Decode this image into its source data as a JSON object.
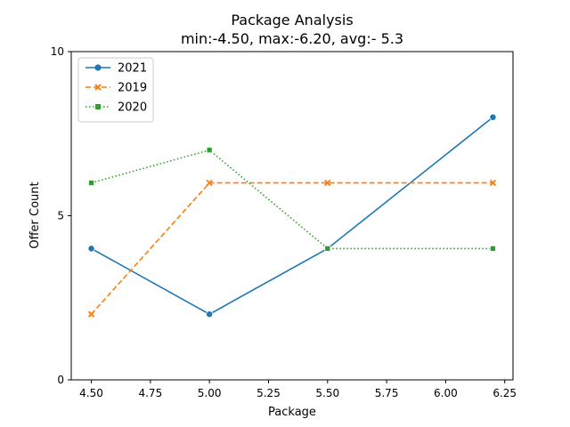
{
  "chart_data": {
    "type": "line",
    "title": "Package Analysis",
    "subtitle": "min:-4.50, max:-6.20, avg:- 5.3",
    "xlabel": "Package",
    "ylabel": "Offer Count",
    "xlim": [
      4.415,
      6.285
    ],
    "ylim": [
      0,
      10
    ],
    "x_ticks": [
      4.5,
      4.75,
      5.0,
      5.25,
      5.5,
      5.75,
      6.0,
      6.25
    ],
    "x_tick_labels": [
      "4.50",
      "4.75",
      "5.00",
      "5.25",
      "5.50",
      "5.75",
      "6.00",
      "6.25"
    ],
    "y_ticks": [
      0,
      5,
      10
    ],
    "y_tick_labels": [
      "0",
      "5",
      "10"
    ],
    "x": [
      4.5,
      5.0,
      5.5,
      6.2
    ],
    "series": [
      {
        "name": "2021",
        "values": [
          4,
          2,
          4,
          8
        ],
        "color": "#1f77b4",
        "style": "solid",
        "marker": "circle"
      },
      {
        "name": "2019",
        "values": [
          2,
          6,
          6,
          6
        ],
        "color": "#ff7f0e",
        "style": "dashed",
        "marker": "x"
      },
      {
        "name": "2020",
        "values": [
          6,
          7,
          4,
          4
        ],
        "color": "#2ca02c",
        "style": "dotted",
        "marker": "square"
      }
    ],
    "grid": false,
    "legend_position": "top-left"
  }
}
